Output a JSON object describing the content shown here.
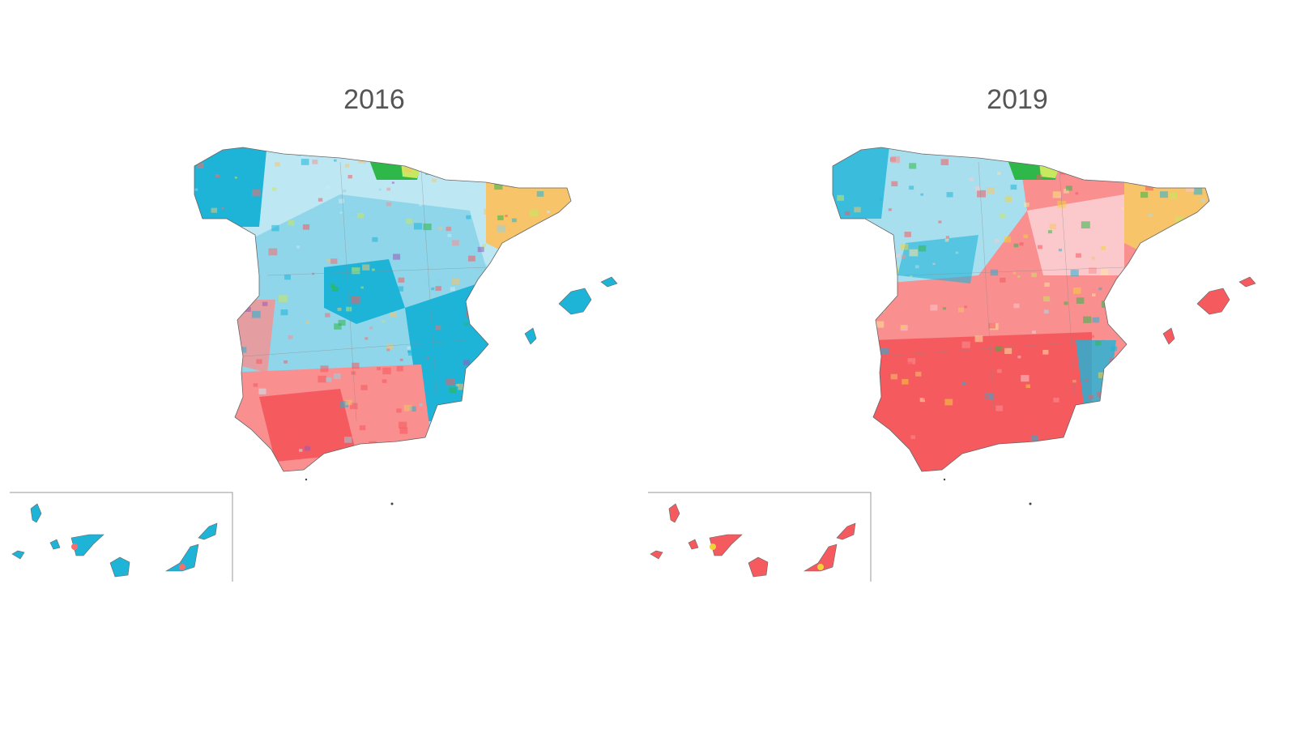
{
  "maps": [
    {
      "title": "2016",
      "palette": {
        "base": "#8fd6ea",
        "main": "#1eb4d8",
        "light": "#c8ecf5",
        "south": "#f98f8f",
        "southDark": "#f55a5f",
        "basque": "#2fb84a",
        "basqueLight": "#c8e860",
        "catalonia": "#f7c46a",
        "cataloniaAccent": "#9b59b6",
        "islands": "#1eb4d8",
        "islandsAccent": "#f76e6e"
      }
    },
    {
      "title": "2019",
      "palette": {
        "base": "#f98f8f",
        "main": "#f55a5f",
        "light": "#fbc9cc",
        "north": "#a8dfee",
        "northDark": "#1eb4d8",
        "basque": "#2fb84a",
        "basqueLight": "#c8e860",
        "catalonia": "#f7c46a",
        "cataloniaAccent": "#fde3a0",
        "islands": "#f55a5f",
        "islandsAccent": "#f2d13a"
      }
    }
  ]
}
